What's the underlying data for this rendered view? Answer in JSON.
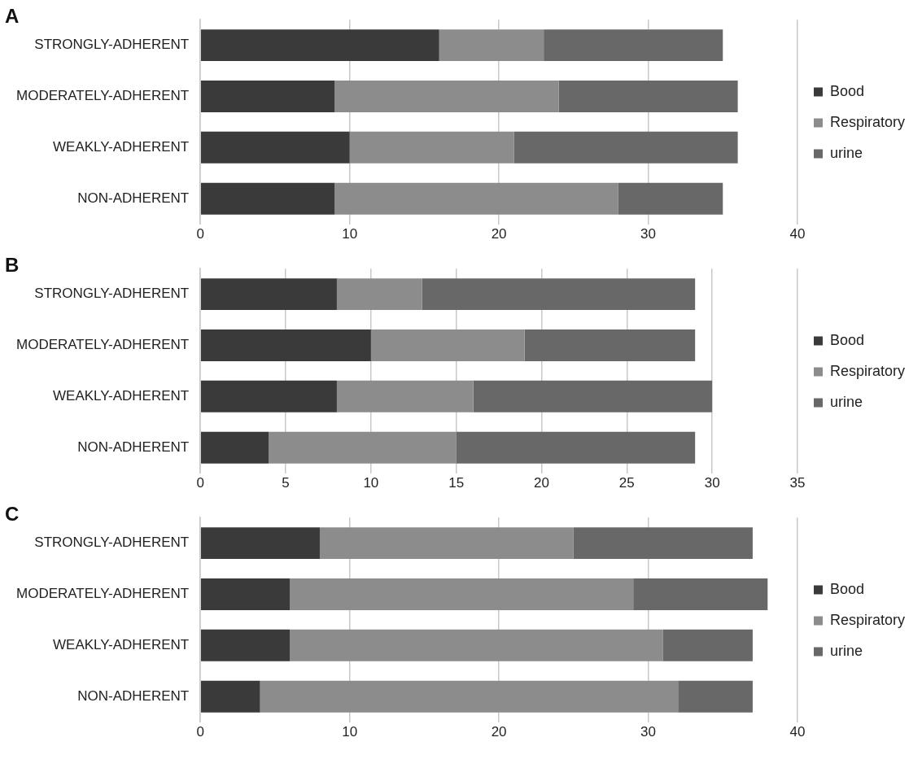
{
  "chart_data": [
    {
      "type": "bar",
      "title": "A",
      "orientation": "horizontal",
      "stacked": true,
      "categories": [
        "STRONGLY-ADHERENT",
        "MODERATELY-ADHERENT",
        "WEAKLY-ADHERENT",
        "NON-ADHERENT"
      ],
      "series": [
        {
          "name": "Bood",
          "color": "#3a3a3a",
          "values": [
            16,
            9,
            10,
            9
          ]
        },
        {
          "name": "Respiratory",
          "color": "#8c8c8c",
          "values": [
            7,
            15,
            11,
            19
          ]
        },
        {
          "name": "urine",
          "color": "#686868",
          "values": [
            12,
            12,
            15,
            7
          ]
        }
      ],
      "xlim": [
        0,
        40
      ],
      "xticks": [
        0,
        10,
        20,
        30,
        40
      ],
      "grid": "x",
      "legend": "right"
    },
    {
      "type": "bar",
      "title": "B",
      "orientation": "horizontal",
      "stacked": true,
      "categories": [
        "STRONGLY-ADHERENT",
        "MODERATELY-ADHERENT",
        "WEAKLY-ADHERENT",
        "NON-ADHERENT"
      ],
      "series": [
        {
          "name": "Bood",
          "color": "#3a3a3a",
          "values": [
            8,
            10,
            8,
            4
          ]
        },
        {
          "name": "Respiratory",
          "color": "#8c8c8c",
          "values": [
            5,
            9,
            8,
            11
          ]
        },
        {
          "name": "urine",
          "color": "#686868",
          "values": [
            16,
            10,
            14,
            14
          ]
        }
      ],
      "xlim": [
        0,
        35
      ],
      "xticks": [
        0,
        5,
        10,
        15,
        20,
        25,
        30,
        35
      ],
      "grid": "x",
      "legend": "right"
    },
    {
      "type": "bar",
      "title": "C",
      "orientation": "horizontal",
      "stacked": true,
      "categories": [
        "STRONGLY-ADHERENT",
        "MODERATELY-ADHERENT",
        "WEAKLY-ADHERENT",
        "NON-ADHERENT"
      ],
      "series": [
        {
          "name": "Bood",
          "color": "#3a3a3a",
          "values": [
            8,
            6,
            6,
            4
          ]
        },
        {
          "name": "Respiratory",
          "color": "#8c8c8c",
          "values": [
            17,
            23,
            25,
            28
          ]
        },
        {
          "name": "urine",
          "color": "#686868",
          "values": [
            12,
            9,
            6,
            5
          ]
        }
      ],
      "xlim": [
        0,
        40
      ],
      "xticks": [
        0,
        10,
        20,
        30,
        40
      ],
      "grid": "x",
      "legend": "right"
    }
  ]
}
